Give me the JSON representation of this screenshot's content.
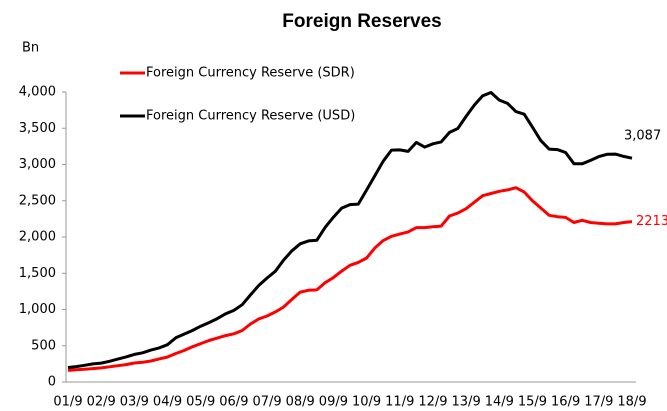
{
  "chart_data": {
    "type": "line",
    "title": "Foreign Reserves",
    "y_label": "Bn",
    "categories": [
      "01/9",
      null,
      null,
      null,
      "02/9",
      null,
      null,
      null,
      "03/9",
      null,
      null,
      null,
      "04/9",
      null,
      null,
      null,
      "05/9",
      null,
      null,
      null,
      "06/9",
      null,
      null,
      null,
      "07/9",
      null,
      null,
      null,
      "08/9",
      null,
      null,
      null,
      "09/9",
      null,
      null,
      null,
      "10/9",
      null,
      null,
      null,
      "11/9",
      null,
      null,
      null,
      "12/9",
      null,
      null,
      null,
      "13/9",
      null,
      null,
      null,
      "14/9",
      null,
      null,
      null,
      "15/9",
      null,
      null,
      null,
      "16/9",
      null,
      null,
      null,
      "17/9",
      null,
      null,
      null,
      "18/9"
    ],
    "series": [
      {
        "name": "Foreign Currency Reserve (SDR)",
        "color": "#ff0000",
        "values": [
          160,
          170,
          175,
          185,
          195,
          210,
          225,
          240,
          262,
          272,
          290,
          318,
          345,
          393,
          435,
          485,
          530,
          573,
          605,
          640,
          665,
          710,
          800,
          870,
          910,
          967,
          1035,
          1140,
          1240,
          1265,
          1270,
          1370,
          1440,
          1530,
          1610,
          1650,
          1710,
          1850,
          1950,
          2010,
          2040,
          2070,
          2130,
          2130,
          2140,
          2150,
          2290,
          2330,
          2390,
          2480,
          2570,
          2600,
          2630,
          2650,
          2680,
          2620,
          2500,
          2400,
          2300,
          2280,
          2270,
          2200,
          2230,
          2200,
          2190,
          2180,
          2180,
          2200,
          2213
        ],
        "value_labels": [
          null,
          null,
          null,
          null,
          null,
          null,
          null,
          null,
          null,
          null,
          null,
          null,
          null,
          null,
          null,
          null,
          null,
          null,
          null,
          null,
          null,
          null,
          null,
          null,
          null,
          null,
          null,
          null,
          null,
          null,
          null,
          null,
          null,
          null,
          null,
          null,
          null,
          null,
          null,
          null,
          null,
          null,
          null,
          null,
          null,
          null,
          null,
          null,
          null,
          null,
          null,
          null,
          null,
          null,
          null,
          null,
          null,
          null,
          null,
          null,
          null,
          null,
          null,
          null,
          null,
          null,
          null,
          null,
          "2213"
        ]
      },
      {
        "name": "Foreign Currency Reserve (USD)",
        "color": "#000000",
        "values": [
          200,
          212,
          230,
          250,
          260,
          286,
          316,
          346,
          380,
          403,
          440,
          470,
          515,
          610,
          660,
          711,
          770,
          819,
          875,
          941,
          988,
          1066,
          1202,
          1333,
          1434,
          1528,
          1682,
          1809,
          1906,
          1946,
          1954,
          2132,
          2273,
          2399,
          2447,
          2454,
          2648,
          2847,
          3045,
          3198,
          3202,
          3181,
          3305,
          3240,
          3285,
          3312,
          3443,
          3497,
          3663,
          3821,
          3948,
          3993,
          3888,
          3843,
          3730,
          3694,
          3514,
          3330,
          3212,
          3205,
          3166,
          3011,
          3009,
          3057,
          3109,
          3140,
          3143,
          3112,
          3087
        ],
        "value_labels": [
          null,
          null,
          null,
          null,
          null,
          null,
          null,
          null,
          null,
          null,
          null,
          null,
          null,
          null,
          null,
          null,
          null,
          null,
          null,
          null,
          null,
          null,
          null,
          null,
          null,
          null,
          null,
          null,
          null,
          null,
          null,
          null,
          null,
          null,
          null,
          null,
          null,
          null,
          null,
          null,
          null,
          null,
          null,
          null,
          null,
          null,
          null,
          null,
          null,
          null,
          null,
          null,
          null,
          null,
          null,
          null,
          null,
          null,
          null,
          null,
          null,
          null,
          null,
          null,
          null,
          null,
          null,
          null,
          "3,087"
        ]
      }
    ],
    "ylim": [
      0,
      4000
    ],
    "yticks": [
      0,
      500,
      {
        "value": 1000,
        "label": "1,000"
      },
      {
        "value": 1500,
        "label": "1,500"
      },
      {
        "value": 2000,
        "label": "2,000"
      },
      {
        "value": 2500,
        "label": "2,500"
      },
      {
        "value": 3000,
        "label": "3,000"
      },
      {
        "value": 3500,
        "label": "3,500"
      },
      {
        "value": 4000,
        "label": "4,000"
      }
    ],
    "grid": false,
    "legend": "upper left"
  }
}
